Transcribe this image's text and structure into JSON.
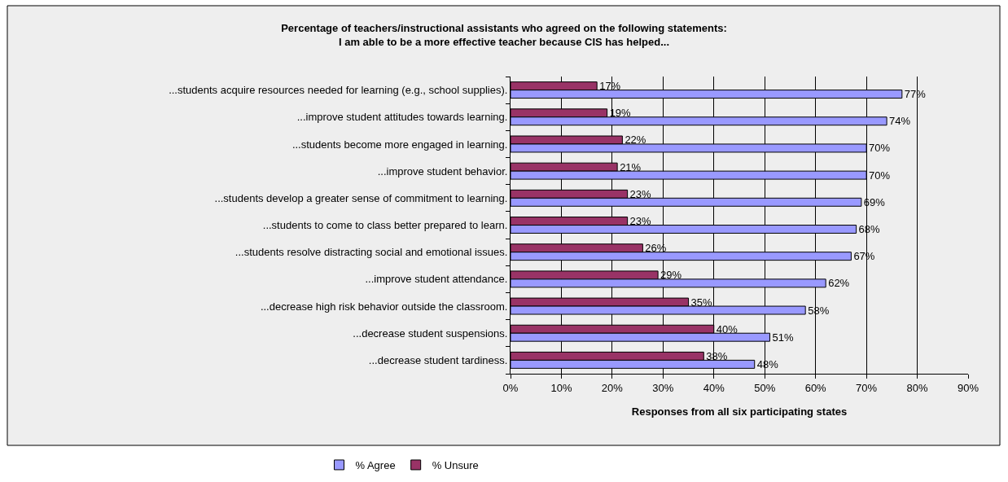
{
  "chart_data": {
    "type": "bar",
    "orientation": "horizontal",
    "title": "Percentage of teachers/instructional assistants who agreed on the following statements:\nI am able to be a more effective teacher because CIS has helped...",
    "xlabel": "Responses from all six participating states",
    "categories": [
      "...students acquire resources needed for learning (e.g., school supplies).",
      "...improve student attitudes towards learning.",
      "...students become more engaged in learning.",
      "...improve student behavior.",
      "...students develop a greater sense of commitment to learning.",
      "...students to come to class better prepared to learn.",
      "...students resolve distracting social and emotional issues.",
      "...improve student attendance.",
      "...decrease high risk behavior outside the classroom.",
      "...decrease student suspensions.",
      "...decrease student tardiness."
    ],
    "series": [
      {
        "name": "% Agree",
        "color": "#9999ff",
        "values": [
          77,
          74,
          70,
          70,
          69,
          68,
          67,
          62,
          58,
          51,
          48
        ],
        "value_labels": [
          "77%",
          "74%",
          "70%",
          "70%",
          "69%",
          "68%",
          "67%",
          "62%",
          "58%",
          "51%",
          "48%"
        ]
      },
      {
        "name": "% Unsure",
        "color": "#993366",
        "values": [
          17,
          19,
          22,
          21,
          23,
          23,
          26,
          29,
          35,
          40,
          38
        ],
        "value_labels": [
          "17%",
          "19%",
          "22%",
          "21%",
          "23%",
          "23%",
          "26%",
          "29%",
          "35%",
          "40%",
          "38%"
        ]
      }
    ],
    "xlim": [
      0,
      90
    ],
    "xticks": [
      {
        "value": 0,
        "label": "0%"
      },
      {
        "value": 10,
        "label": "10%"
      },
      {
        "value": 20,
        "label": "20%"
      },
      {
        "value": 30,
        "label": "30%"
      },
      {
        "value": 40,
        "label": "40%"
      },
      {
        "value": 50,
        "label": "50%"
      },
      {
        "value": 60,
        "label": "60%"
      },
      {
        "value": 70,
        "label": "70%"
      },
      {
        "value": 80,
        "label": "80%"
      },
      {
        "value": 90,
        "label": "90%"
      }
    ],
    "grid": "x",
    "legend": "bottom"
  }
}
